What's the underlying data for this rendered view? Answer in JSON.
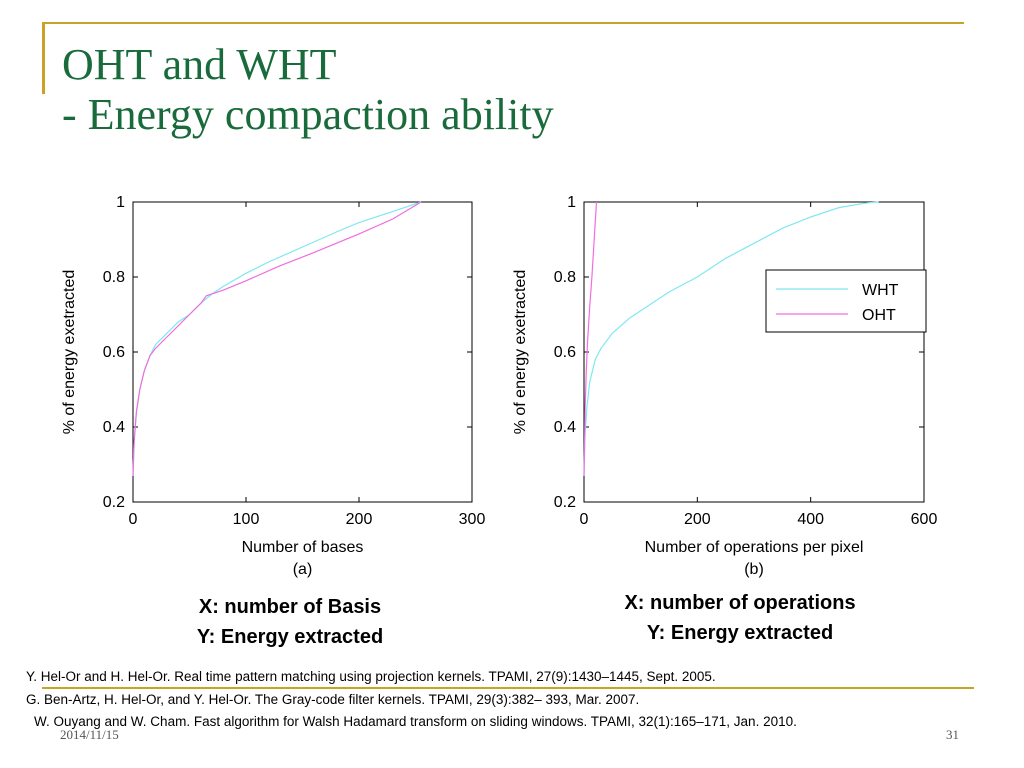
{
  "slide": {
    "title_line1": "OHT and WHT",
    "title_line2": "- Energy compaction ability",
    "date": "2014/11/15",
    "page_number": "31"
  },
  "captions": {
    "left_line1": "X: number of Basis",
    "left_line2": "Y: Energy extracted",
    "right_line1": "X: number of operations",
    "right_line2": "Y: Energy extracted"
  },
  "references": [
    "Y. Hel-Or and H. Hel-Or. Real time pattern matching using projection kernels. TPAMI, 27(9):1430–1445, Sept. 2005.",
    "G. Ben-Artz, H. Hel-Or, and Y. Hel-Or. The Gray-code filter kernels. TPAMI, 29(3):382– 393, Mar. 2007.",
    "W. Ouyang and W. Cham. Fast algorithm for Walsh Hadamard transform on sliding windows. TPAMI, 32(1):165–171, Jan. 2010."
  ],
  "colors": {
    "title": "#1a6b3c",
    "rule": "#c9a227",
    "wht": "#7fe8f0",
    "oht": "#f06de0"
  },
  "chart_data": [
    {
      "id": "a",
      "type": "line",
      "xlabel": "Number of bases",
      "ylabel": "% of energy exetracted",
      "sublabel": "(a)",
      "xlim": [
        0,
        300
      ],
      "ylim": [
        0.2,
        1
      ],
      "xticks": [
        0,
        100,
        200,
        300
      ],
      "yticks": [
        0.2,
        0.4,
        0.6,
        0.8,
        1
      ],
      "ytick_labels": [
        "0.2",
        "0.4",
        "0.6",
        "0.8",
        "1"
      ],
      "legend": false,
      "series": [
        {
          "name": "WHT",
          "color": "#7fe8f0",
          "x": [
            0,
            1,
            3,
            6,
            10,
            15,
            20,
            30,
            40,
            50,
            60,
            70,
            80,
            100,
            120,
            150,
            180,
            200,
            230,
            255
          ],
          "y": [
            0.27,
            0.36,
            0.44,
            0.5,
            0.55,
            0.59,
            0.62,
            0.65,
            0.68,
            0.7,
            0.73,
            0.755,
            0.775,
            0.81,
            0.84,
            0.88,
            0.92,
            0.945,
            0.975,
            1.0
          ]
        },
        {
          "name": "OHT",
          "color": "#f06de0",
          "x": [
            0,
            1,
            3,
            6,
            10,
            15,
            20,
            30,
            40,
            50,
            60,
            65,
            80,
            100,
            130,
            160,
            200,
            230,
            255
          ],
          "y": [
            0.27,
            0.36,
            0.44,
            0.5,
            0.55,
            0.59,
            0.61,
            0.64,
            0.67,
            0.7,
            0.73,
            0.75,
            0.765,
            0.79,
            0.83,
            0.865,
            0.915,
            0.955,
            1.0
          ]
        }
      ]
    },
    {
      "id": "b",
      "type": "line",
      "xlabel": "Number of operations per pixel",
      "ylabel": "% of energy exetracted",
      "sublabel": "(b)",
      "xlim": [
        0,
        600
      ],
      "ylim": [
        0.2,
        1
      ],
      "xticks": [
        0,
        200,
        400,
        600
      ],
      "yticks": [
        0.2,
        0.4,
        0.6,
        0.8,
        1
      ],
      "ytick_labels": [
        "0.2",
        "0.4",
        "0.6",
        "0.8",
        "1"
      ],
      "legend": true,
      "legend_position": "top-right",
      "series": [
        {
          "name": "WHT",
          "color": "#7fe8f0",
          "x": [
            0,
            2,
            5,
            10,
            20,
            30,
            50,
            80,
            100,
            150,
            200,
            250,
            300,
            350,
            400,
            450,
            500,
            520
          ],
          "y": [
            0.27,
            0.38,
            0.45,
            0.52,
            0.58,
            0.61,
            0.65,
            0.69,
            0.71,
            0.76,
            0.8,
            0.85,
            0.89,
            0.93,
            0.96,
            0.985,
            0.998,
            1.0
          ]
        },
        {
          "name": "OHT",
          "color": "#f06de0",
          "x": [
            0,
            2,
            4,
            6,
            10,
            14,
            18,
            22
          ],
          "y": [
            0.27,
            0.45,
            0.55,
            0.62,
            0.72,
            0.8,
            0.9,
            1.0
          ]
        }
      ]
    }
  ]
}
